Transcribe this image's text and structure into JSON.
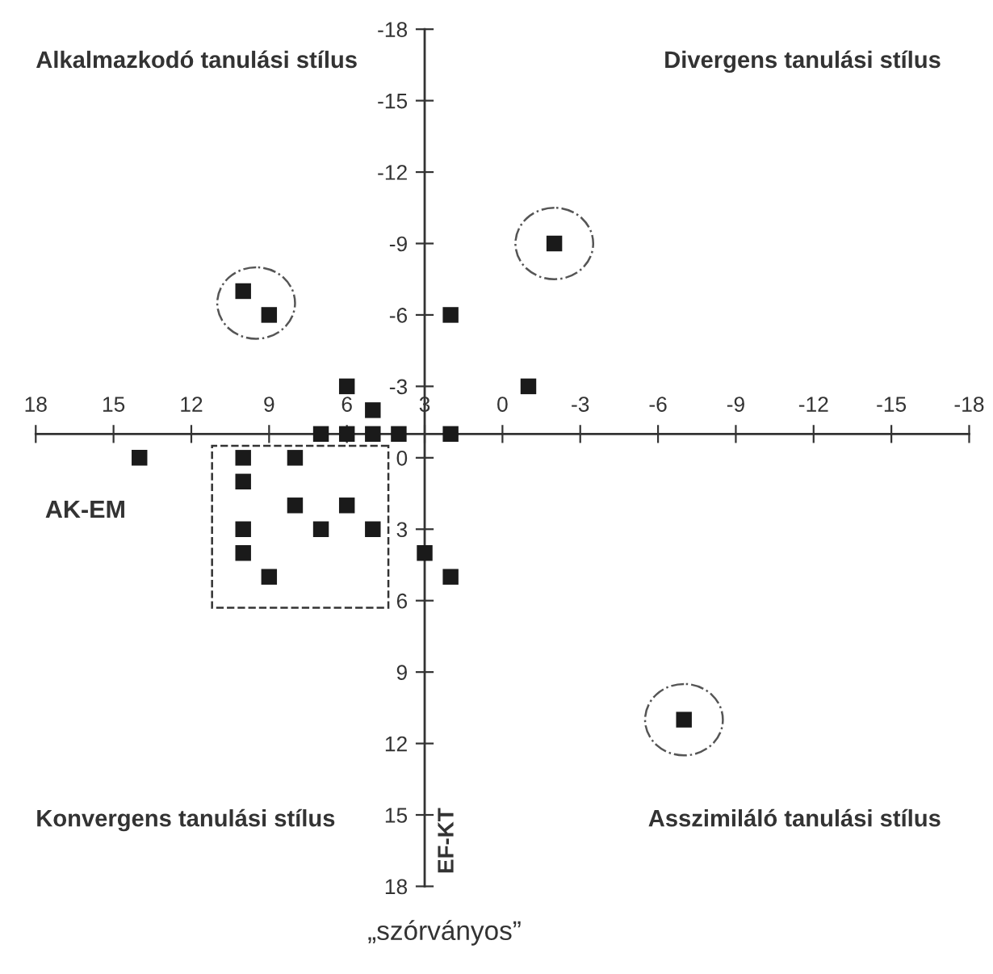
{
  "chart_data": {
    "type": "scatter",
    "xlabel": "AK-EM",
    "ylabel": "EF-KT",
    "annotations": [
      "Alkalmazkodó tanulási stílus",
      "Divergens tanulási stílus",
      "Konvergens tanulási stílus",
      "Asszimiláló tanulási stílus",
      "„szórványos”"
    ],
    "series": [
      {
        "color": "#1a1a1a",
        "x": [
          10,
          9,
          2,
          6,
          5,
          7,
          6,
          5,
          4,
          2,
          14,
          10,
          8,
          10,
          8,
          6,
          10,
          7,
          5,
          10,
          9,
          3,
          2,
          -1,
          -2,
          -7
        ],
        "values": [
          -7,
          -6,
          -6,
          -3,
          -2,
          -1,
          -1,
          -1,
          -1,
          -1,
          0,
          0,
          0,
          1,
          2,
          2,
          3,
          3,
          3,
          4,
          5,
          4,
          5,
          -3,
          -9,
          11
        ]
      }
    ],
    "marker": "square",
    "xlim": [
      18,
      -18
    ],
    "ylim": [
      18,
      -18
    ],
    "xticks": [
      18,
      15,
      12,
      9,
      6,
      3,
      0,
      -3,
      -6,
      -9,
      -12,
      -15,
      -18
    ],
    "yticks": [
      -18,
      -15,
      -12,
      -9,
      -6,
      -3,
      0,
      3,
      6,
      9,
      12,
      15,
      18
    ],
    "grid": false,
    "legend": false
  }
}
